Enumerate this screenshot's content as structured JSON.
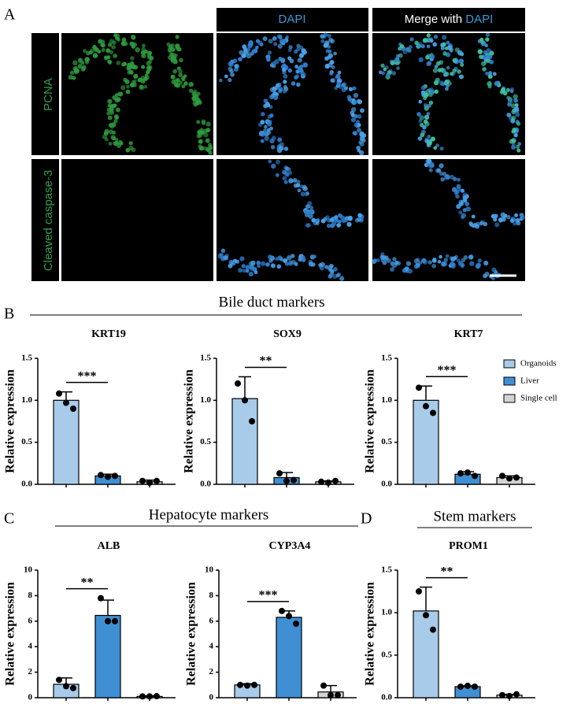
{
  "panels": {
    "a": "A",
    "b": "B",
    "c": "C",
    "d": "D"
  },
  "images": {
    "dapi_header": "DAPI",
    "merge_header": "Merge with ",
    "merge_dapi": "DAPI",
    "row1": "PCNA",
    "row2": "Cleaved caspase-3"
  },
  "groups": {
    "bile": "Bile duct markers",
    "hepatocyte": "Hepatocyte markers",
    "stem": "Stem markers"
  },
  "legend": {
    "labels": [
      "Organoids",
      "Liver",
      "Single cell"
    ]
  },
  "chart_data": [
    {
      "type": "bar",
      "title": "KRT19",
      "y_label": "Relative expression",
      "categories": [
        null,
        null,
        null
      ],
      "values": [
        1.0,
        0.1,
        0.03
      ],
      "errors": [
        0.1,
        0.02,
        0.02
      ],
      "points": [
        [
          1.08,
          0.97,
          0.9
        ],
        [
          0.11,
          0.09,
          0.1
        ],
        [
          0.04,
          0.02,
          0.04
        ]
      ],
      "colors": [
        "#a8cbea",
        "#3f8fd2",
        "#d3d3d3"
      ],
      "significance": "***",
      "ylim": [
        0,
        1.5
      ],
      "yticks": [
        {
          "value": 0,
          "label": "0.0"
        },
        0.5,
        {
          "value": 1,
          "label": "1.0"
        },
        1.5
      ]
    },
    {
      "type": "bar",
      "title": "SOX9",
      "y_label": "Relative expression",
      "categories": [
        null,
        null,
        null
      ],
      "values": [
        1.02,
        0.08,
        0.03
      ],
      "errors": [
        0.26,
        0.06,
        0.01
      ],
      "points": [
        [
          1.2,
          1.0,
          0.75
        ],
        [
          0.13,
          0.04,
          0.05
        ],
        [
          0.03,
          0.02,
          0.04
        ]
      ],
      "colors": [
        "#a8cbea",
        "#3f8fd2",
        "#d3d3d3"
      ],
      "significance": "**",
      "ylim": [
        0,
        1.5
      ],
      "yticks": [
        {
          "value": 0,
          "label": "0.0"
        },
        0.5,
        {
          "value": 1,
          "label": "1.0"
        },
        1.5
      ]
    },
    {
      "type": "bar",
      "title": "KRT7",
      "y_label": "Relative expression",
      "categories": [
        null,
        null,
        null
      ],
      "values": [
        1.0,
        0.12,
        0.08
      ],
      "errors": [
        0.17,
        0.03,
        0.02
      ],
      "points": [
        [
          1.15,
          0.93,
          0.85
        ],
        [
          0.13,
          0.14,
          0.1
        ],
        [
          0.1,
          0.07,
          0.08
        ]
      ],
      "colors": [
        "#a8cbea",
        "#3f8fd2",
        "#d3d3d3"
      ],
      "significance": "***",
      "ylim": [
        0,
        1.5
      ],
      "yticks": [
        {
          "value": 0,
          "label": "0.0"
        },
        0.5,
        {
          "value": 1,
          "label": "1.0"
        },
        1.5
      ]
    },
    {
      "type": "bar",
      "title": "ALB",
      "y_label": "Relative expression",
      "categories": [
        null,
        null,
        null
      ],
      "values": [
        1.05,
        6.45,
        0.1
      ],
      "errors": [
        0.5,
        1.2,
        0.05
      ],
      "points": [
        [
          1.4,
          0.9,
          0.75
        ],
        [
          7.8,
          6.0,
          6.0
        ],
        [
          0.1,
          0.1,
          0.12
        ]
      ],
      "colors": [
        "#a8cbea",
        "#3f8fd2",
        "#d3d3d3"
      ],
      "significance": "**",
      "ylim": [
        0,
        10
      ],
      "yticks": [
        0,
        2,
        4,
        6,
        8,
        10
      ]
    },
    {
      "type": "bar",
      "title": "CYP3A4",
      "y_label": "Relative expression",
      "categories": [
        null,
        null,
        null
      ],
      "values": [
        1.0,
        6.3,
        0.45
      ],
      "errors": [
        0.1,
        0.5,
        0.5
      ],
      "points": [
        [
          1.0,
          0.95,
          1.0
        ],
        [
          6.8,
          6.4,
          5.8
        ],
        [
          0.95,
          0.2,
          0.2
        ]
      ],
      "colors": [
        "#a8cbea",
        "#3f8fd2",
        "#d3d3d3"
      ],
      "significance": "***",
      "ylim": [
        0,
        10
      ],
      "yticks": [
        0,
        2,
        4,
        6,
        8,
        10
      ]
    },
    {
      "type": "bar",
      "title": "PROM1",
      "y_label": "Relative expression",
      "categories": [
        null,
        null,
        null
      ],
      "values": [
        1.02,
        0.13,
        0.03
      ],
      "errors": [
        0.28,
        0.01,
        0.01
      ],
      "points": [
        [
          1.25,
          0.97,
          0.8
        ],
        [
          0.13,
          0.14,
          0.13
        ],
        [
          0.03,
          0.02,
          0.04
        ]
      ],
      "colors": [
        "#a8cbea",
        "#3f8fd2",
        "#d3d3d3"
      ],
      "significance": "**",
      "ylim": [
        0,
        1.5
      ],
      "yticks": [
        {
          "value": 0,
          "label": "0.0"
        },
        0.5,
        {
          "value": 1,
          "label": "1.0"
        },
        1.5
      ]
    }
  ]
}
